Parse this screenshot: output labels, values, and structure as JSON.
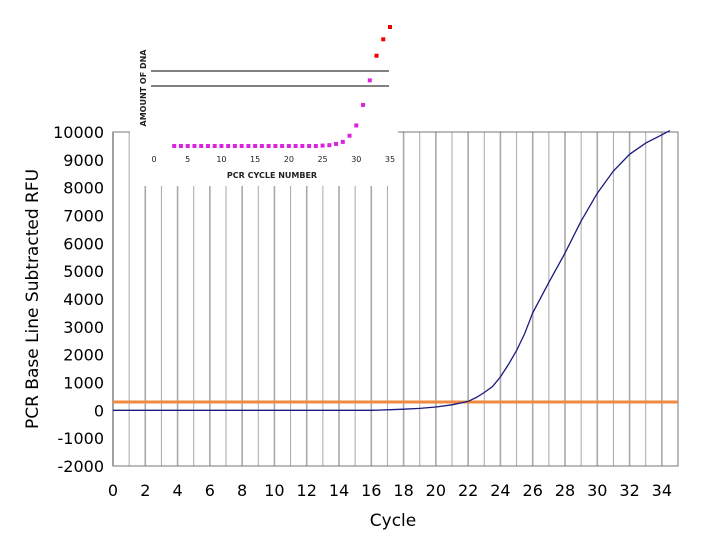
{
  "chart_data": [
    {
      "type": "line",
      "xlabel": "Cycle",
      "ylabel": "PCR Base Line Subtracted RFU",
      "xlim": [
        0,
        35
      ],
      "ylim": [
        -2000,
        10000
      ],
      "x_ticks": [
        0,
        2,
        4,
        6,
        8,
        10,
        12,
        14,
        16,
        18,
        20,
        22,
        24,
        26,
        28,
        30,
        32,
        34
      ],
      "y_ticks": [
        10000,
        9000,
        8000,
        7000,
        6000,
        5000,
        4000,
        3000,
        2000,
        1000,
        0,
        -1000,
        -2000
      ],
      "grid": "vertical lines every cycle",
      "colors": {
        "curve": "#1a1a80",
        "threshold": "#f08a40",
        "grid": "#a9a9a9"
      },
      "series": [
        {
          "x": [
            0,
            2,
            4,
            6,
            8,
            10,
            12,
            14,
            16,
            17,
            18,
            19,
            20,
            21,
            22,
            22.5,
            23,
            23.5,
            24,
            24.5,
            25,
            25.5,
            26,
            27,
            28,
            29,
            30,
            31,
            32,
            33,
            34,
            34.5
          ],
          "y": [
            0,
            0,
            0,
            0,
            0,
            0,
            0,
            0,
            0,
            20,
            40,
            70,
            120,
            200,
            320,
            460,
            640,
            850,
            1200,
            1650,
            2150,
            2750,
            3500,
            4600,
            5650,
            6800,
            7800,
            8600,
            9200,
            9600,
            9900,
            10050
          ]
        },
        {
          "x": [
            0,
            35
          ],
          "y": [
            300,
            300
          ]
        }
      ]
    },
    {
      "type": "scatter",
      "xlabel": "PCR CYCLE NUMBER",
      "ylabel": "AMOUNT OF DNA",
      "x_ticks": [
        0,
        5,
        10,
        15,
        20,
        25,
        30,
        35
      ],
      "colors": {
        "low": "#dd22dd",
        "high": "#ee0000"
      },
      "x": [
        1,
        2,
        3,
        4,
        5,
        6,
        7,
        8,
        9,
        10,
        11,
        12,
        13,
        14,
        15,
        16,
        17,
        18,
        19,
        20,
        21,
        22,
        23,
        24,
        25,
        26,
        27,
        28,
        29,
        30,
        31,
        32,
        33,
        34,
        35
      ],
      "y": [
        1,
        1,
        1,
        1,
        1,
        1,
        1,
        1,
        1,
        1,
        1,
        1,
        1,
        1,
        1,
        1,
        1,
        1,
        1,
        1,
        1,
        1,
        1,
        1,
        1.01,
        1.02,
        1.05,
        1.1,
        1.25,
        1.5,
        2.0,
        2.6,
        3.2,
        3.6,
        3.9
      ]
    }
  ]
}
